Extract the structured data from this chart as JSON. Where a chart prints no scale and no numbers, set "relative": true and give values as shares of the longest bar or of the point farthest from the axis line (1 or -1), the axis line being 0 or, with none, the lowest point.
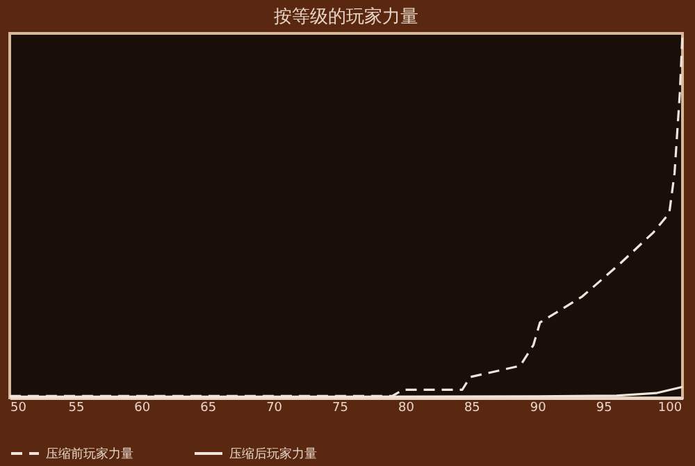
{
  "chart_data": {
    "type": "line",
    "title": "按等级的玩家力量",
    "relative": true,
    "xlim": [
      50,
      101
    ],
    "xticks": [
      50,
      55,
      60,
      65,
      70,
      75,
      80,
      85,
      90,
      95,
      100
    ],
    "series": [
      {
        "name": "压缩前玩家力量",
        "color": "#f2e4dc",
        "line_style": "dashed",
        "x": [
          50,
          60,
          70,
          79,
          79.8,
          84.3,
          84.9,
          88.7,
          89.7,
          90.2,
          90.8,
          93.4,
          96.2,
          98.8,
          100,
          100.4,
          100.8,
          101
        ],
        "values": [
          0.005,
          0.005,
          0.005,
          0.005,
          0.022,
          0.022,
          0.057,
          0.088,
          0.145,
          0.207,
          0.22,
          0.278,
          0.366,
          0.454,
          0.507,
          0.617,
          0.837,
          1
        ]
      },
      {
        "name": "压缩后玩家力量",
        "color": "#f2e4dc",
        "line_style": "solid",
        "x": [
          50,
          70,
          90,
          96,
          99,
          101
        ],
        "values": [
          0.003,
          0.003,
          0.004,
          0.006,
          0.013,
          0.03
        ]
      }
    ],
    "legend": "bottom",
    "marker": "none"
  }
}
